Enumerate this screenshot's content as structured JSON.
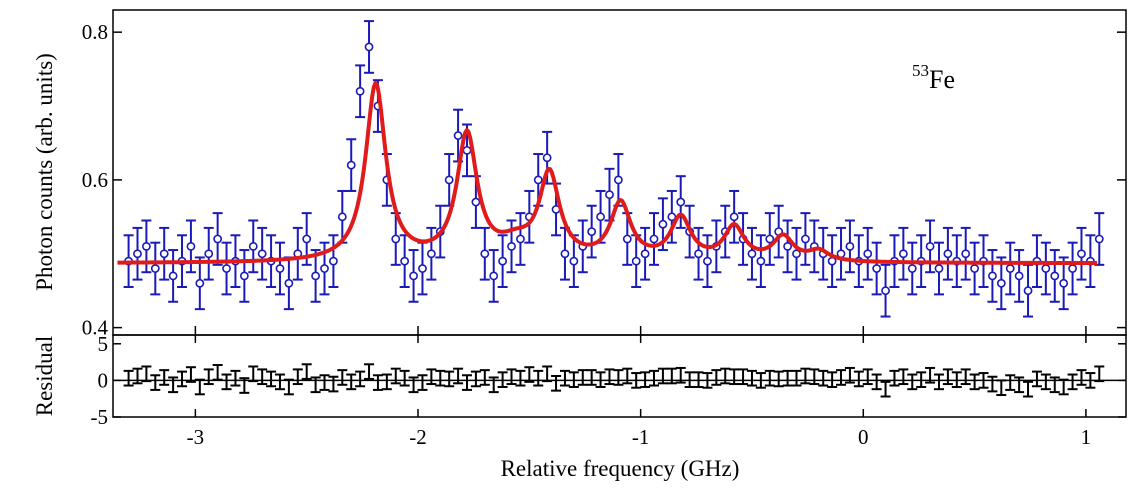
{
  "chart_data": [
    {
      "panel": "main",
      "type": "scatter",
      "ylabel": "Photon counts (arb. units)",
      "annotation": {
        "mass_number": "53",
        "element": "Fe"
      },
      "xlim": [
        -3.37,
        1.18
      ],
      "ylim": [
        0.39,
        0.83
      ],
      "yticks": [
        0.4,
        0.6,
        0.8
      ],
      "ytick_labels": [
        "0.4",
        "0.6",
        "0.8"
      ],
      "grid": false,
      "series": [
        {
          "role": "data",
          "style": "open circles with error bars",
          "color": "#1a1ab8",
          "error_bar": 0.035,
          "x": [
            -3.3,
            -3.26,
            -3.22,
            -3.18,
            -3.14,
            -3.1,
            -3.06,
            -3.02,
            -2.98,
            -2.94,
            -2.9,
            -2.86,
            -2.82,
            -2.78,
            -2.74,
            -2.7,
            -2.66,
            -2.62,
            -2.58,
            -2.54,
            -2.5,
            -2.46,
            -2.42,
            -2.38,
            -2.34,
            -2.3,
            -2.26,
            -2.22,
            -2.18,
            -2.14,
            -2.1,
            -2.06,
            -2.02,
            -1.98,
            -1.94,
            -1.9,
            -1.86,
            -1.82,
            -1.78,
            -1.74,
            -1.7,
            -1.66,
            -1.62,
            -1.58,
            -1.54,
            -1.5,
            -1.46,
            -1.42,
            -1.38,
            -1.34,
            -1.3,
            -1.26,
            -1.22,
            -1.18,
            -1.14,
            -1.1,
            -1.06,
            -1.02,
            -0.98,
            -0.94,
            -0.9,
            -0.86,
            -0.82,
            -0.78,
            -0.74,
            -0.7,
            -0.66,
            -0.62,
            -0.58,
            -0.54,
            -0.5,
            -0.46,
            -0.42,
            -0.38,
            -0.34,
            -0.3,
            -0.26,
            -0.22,
            -0.18,
            -0.14,
            -0.1,
            -0.06,
            -0.02,
            0.02,
            0.06,
            0.1,
            0.14,
            0.18,
            0.22,
            0.26,
            0.3,
            0.34,
            0.38,
            0.42,
            0.46,
            0.5,
            0.54,
            0.58,
            0.62,
            0.66,
            0.7,
            0.74,
            0.78,
            0.82,
            0.86,
            0.9,
            0.94,
            0.98,
            1.02,
            1.06
          ],
          "y": [
            0.49,
            0.5,
            0.51,
            0.48,
            0.5,
            0.47,
            0.49,
            0.51,
            0.46,
            0.5,
            0.52,
            0.48,
            0.49,
            0.47,
            0.51,
            0.5,
            0.49,
            0.48,
            0.46,
            0.5,
            0.52,
            0.47,
            0.48,
            0.49,
            0.55,
            0.62,
            0.72,
            0.78,
            0.7,
            0.6,
            0.52,
            0.49,
            0.47,
            0.48,
            0.5,
            0.53,
            0.6,
            0.66,
            0.64,
            0.57,
            0.5,
            0.47,
            0.49,
            0.51,
            0.52,
            0.55,
            0.6,
            0.63,
            0.56,
            0.5,
            0.49,
            0.51,
            0.53,
            0.55,
            0.58,
            0.6,
            0.52,
            0.49,
            0.5,
            0.52,
            0.54,
            0.55,
            0.57,
            0.53,
            0.5,
            0.49,
            0.51,
            0.53,
            0.55,
            0.52,
            0.5,
            0.49,
            0.52,
            0.53,
            0.51,
            0.5,
            0.52,
            0.51,
            0.5,
            0.49,
            0.5,
            0.51,
            0.49,
            0.5,
            0.48,
            0.45,
            0.49,
            0.5,
            0.48,
            0.49,
            0.51,
            0.48,
            0.5,
            0.49,
            0.5,
            0.48,
            0.49,
            0.47,
            0.46,
            0.48,
            0.47,
            0.45,
            0.49,
            0.48,
            0.47,
            0.46,
            0.48,
            0.5,
            0.49,
            0.52
          ]
        },
        {
          "role": "fit",
          "style": "line",
          "color": "#e01b1b",
          "baseline": 0.487,
          "peaks": [
            {
              "center": -2.19,
              "amplitude": 0.24,
              "width": 0.055
            },
            {
              "center": -1.78,
              "amplitude": 0.17,
              "width": 0.055
            },
            {
              "center": -1.41,
              "amplitude": 0.115,
              "width": 0.055
            },
            {
              "center": -1.09,
              "amplitude": 0.077,
              "width": 0.055
            },
            {
              "center": -0.82,
              "amplitude": 0.058,
              "width": 0.055
            },
            {
              "center": -0.58,
              "amplitude": 0.046,
              "width": 0.055
            },
            {
              "center": -0.36,
              "amplitude": 0.033,
              "width": 0.055
            },
            {
              "center": -0.2,
              "amplitude": 0.014,
              "width": 0.055
            },
            {
              "center": -1.56,
              "amplitude": 0.02,
              "width": 0.09
            }
          ]
        }
      ]
    },
    {
      "panel": "residual",
      "type": "scatter",
      "xlabel": "Relative frequency (GHz)",
      "ylabel": "Residual",
      "xlim": [
        -3.37,
        1.18
      ],
      "ylim": [
        -5,
        6.2
      ],
      "xticks": [
        -3,
        -2,
        -1,
        0,
        1
      ],
      "xtick_labels": [
        "-3",
        "-2",
        "-1",
        "0",
        "1"
      ],
      "yticks": [
        -5,
        0,
        5
      ],
      "ytick_labels": [
        "-5",
        "0",
        "5"
      ],
      "reference_line": 0,
      "grid": false,
      "series": [
        {
          "role": "residuals",
          "style": "error bars",
          "color": "#000000",
          "error_bar": 1.0,
          "x": [
            -3.3,
            -3.26,
            -3.22,
            -3.18,
            -3.14,
            -3.1,
            -3.06,
            -3.02,
            -2.98,
            -2.94,
            -2.9,
            -2.86,
            -2.82,
            -2.78,
            -2.74,
            -2.7,
            -2.66,
            -2.62,
            -2.58,
            -2.54,
            -2.5,
            -2.46,
            -2.42,
            -2.38,
            -2.34,
            -2.3,
            -2.26,
            -2.22,
            -2.18,
            -2.14,
            -2.1,
            -2.06,
            -2.02,
            -1.98,
            -1.94,
            -1.9,
            -1.86,
            -1.82,
            -1.78,
            -1.74,
            -1.7,
            -1.66,
            -1.62,
            -1.58,
            -1.54,
            -1.5,
            -1.46,
            -1.42,
            -1.38,
            -1.34,
            -1.3,
            -1.26,
            -1.22,
            -1.18,
            -1.14,
            -1.1,
            -1.06,
            -1.02,
            -0.98,
            -0.94,
            -0.9,
            -0.86,
            -0.82,
            -0.78,
            -0.74,
            -0.7,
            -0.66,
            -0.62,
            -0.58,
            -0.54,
            -0.5,
            -0.46,
            -0.42,
            -0.38,
            -0.34,
            -0.3,
            -0.26,
            -0.22,
            -0.18,
            -0.14,
            -0.1,
            -0.06,
            -0.02,
            0.02,
            0.06,
            0.1,
            0.14,
            0.18,
            0.22,
            0.26,
            0.3,
            0.34,
            0.38,
            0.42,
            0.46,
            0.5,
            0.54,
            0.58,
            0.62,
            0.66,
            0.7,
            0.74,
            0.78,
            0.82,
            0.86,
            0.9,
            0.94,
            0.98,
            1.02,
            1.06
          ],
          "y": [
            0.3,
            0.6,
            0.9,
            -0.3,
            0.4,
            -0.6,
            0.2,
            0.8,
            -0.9,
            0.5,
            1.1,
            -0.2,
            0.3,
            -0.7,
            0.9,
            0.5,
            0.2,
            -0.2,
            -0.9,
            0.5,
            1.2,
            -0.6,
            -0.3,
            -0.5,
            0.4,
            -0.2,
            0.2,
            1.2,
            -0.3,
            -0.2,
            0.6,
            0.3,
            -0.6,
            -0.3,
            0.5,
            0.3,
            0.2,
            0.6,
            -0.3,
            0.2,
            0.4,
            -0.6,
            0.1,
            0.5,
            0.3,
            0.8,
            0.3,
            0.9,
            -0.4,
            0.3,
            0.1,
            0.4,
            0.4,
            0.1,
            0.5,
            0.4,
            0.6,
            0.0,
            0.1,
            0.3,
            0.6,
            0.6,
            0.7,
            0.1,
            0.1,
            0.0,
            0.4,
            0.6,
            0.5,
            0.5,
            0.3,
            0.0,
            0.3,
            0.2,
            0.3,
            0.3,
            0.6,
            0.5,
            0.3,
            0.1,
            0.4,
            0.7,
            0.2,
            0.5,
            -0.2,
            -1.2,
            0.3,
            0.5,
            -0.2,
            0.1,
            0.7,
            -0.2,
            0.5,
            0.1,
            0.5,
            -0.2,
            0.0,
            -0.5,
            -1.0,
            -0.3,
            -0.6,
            -1.2,
            0.2,
            -0.2,
            -0.6,
            -0.9,
            -0.2,
            0.4,
            0.0,
            0.9
          ]
        }
      ]
    }
  ]
}
